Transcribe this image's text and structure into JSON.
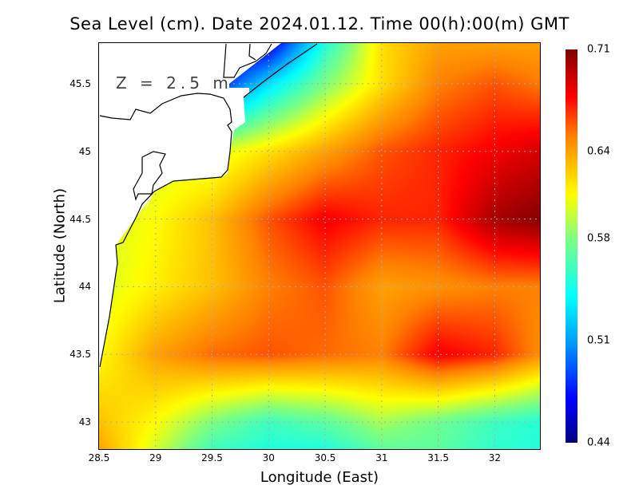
{
  "chart_data": {
    "type": "heatmap",
    "title": "Sea Level (cm). Date 2024.01.12. Time 00(h):00(m) GMT",
    "xlabel": "Longitude (East)",
    "ylabel": "Latitude (North)",
    "annotation": "Z = 2.5 m",
    "xlim": [
      28.5,
      32.4
    ],
    "ylim": [
      42.8,
      45.8
    ],
    "x_ticks": [
      "28.5",
      "29",
      "29.5",
      "30",
      "30.5",
      "31",
      "31.5",
      "32"
    ],
    "x_tick_values": [
      28.5,
      29,
      29.5,
      30,
      30.5,
      31,
      31.5,
      32
    ],
    "y_ticks": [
      "45.5",
      "45",
      "44.5",
      "44",
      "43.5",
      "43"
    ],
    "y_tick_values": [
      45.5,
      45,
      44.5,
      44,
      43.5,
      43
    ],
    "grid": true,
    "colorbar": {
      "ticks": [
        "0.71",
        "0.64",
        "0.58",
        "0.51",
        "0.44"
      ],
      "tick_values": [
        0.71,
        0.64,
        0.58,
        0.51,
        0.44
      ],
      "range": [
        0.44,
        0.71
      ],
      "placement": "right"
    },
    "grid_lon": [
      28.5,
      29,
      29.5,
      30,
      30.5,
      31,
      31.5,
      32,
      32.5
    ],
    "grid_lat": [
      45.8,
      45.5,
      45,
      44.5,
      44,
      43.5,
      43,
      42.8
    ],
    "values": [
      [
        null,
        null,
        0.44,
        0.46,
        0.55,
        0.62,
        0.64,
        0.64,
        0.64
      ],
      [
        null,
        null,
        0.47,
        0.53,
        0.58,
        0.62,
        0.65,
        0.66,
        0.65
      ],
      [
        null,
        null,
        0.6,
        0.62,
        0.64,
        0.66,
        0.67,
        0.68,
        0.69
      ],
      [
        null,
        0.61,
        0.63,
        0.66,
        0.68,
        0.67,
        0.67,
        0.7,
        0.71
      ],
      [
        0.6,
        0.615,
        0.63,
        0.65,
        0.66,
        0.64,
        0.645,
        0.65,
        0.65
      ],
      [
        0.61,
        0.64,
        0.655,
        0.66,
        0.655,
        0.65,
        0.68,
        0.67,
        0.64
      ],
      [
        0.63,
        0.61,
        0.58,
        0.56,
        0.57,
        0.59,
        0.575,
        0.56,
        0.55
      ],
      [
        0.64,
        0.6,
        0.56,
        0.55,
        0.55,
        0.57,
        0.57,
        0.555,
        0.55
      ]
    ],
    "colors": {
      "land": "#ffffff",
      "coast": "#000000",
      "grid": "#aaaaaa"
    }
  }
}
